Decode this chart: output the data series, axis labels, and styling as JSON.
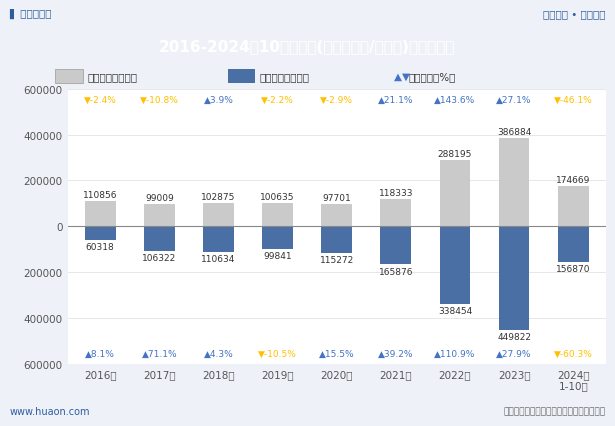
{
  "title": "2016-2024年10月新余市(境内目的地/货源地)进、出口额",
  "years": [
    "2016年",
    "2017年",
    "2018年",
    "2019年",
    "2020年",
    "2021年",
    "2022年",
    "2023年",
    "2024年\n1-10月"
  ],
  "export_values": [
    110856,
    99009,
    102875,
    100635,
    97701,
    118333,
    288195,
    386884,
    174669
  ],
  "import_values": [
    60318,
    106322,
    110634,
    99841,
    115272,
    165876,
    338454,
    449822,
    156870
  ],
  "export_growth_strs": [
    "-2.4%",
    "-10.8%",
    "3.9%",
    "-2.2%",
    "-2.9%",
    "21.1%",
    "143.6%",
    "27.1%",
    "-46.1%"
  ],
  "import_growth_strs": [
    "8.1%",
    "71.1%",
    "4.3%",
    "-10.5%",
    "15.5%",
    "39.2%",
    "110.9%",
    "27.9%",
    "-60.3%"
  ],
  "export_growth_vals": [
    -2.4,
    -10.8,
    3.9,
    -2.2,
    -2.9,
    21.1,
    143.6,
    27.1,
    -46.1
  ],
  "import_growth_vals": [
    8.1,
    71.1,
    4.3,
    -10.5,
    15.5,
    39.2,
    110.9,
    27.9,
    -60.3
  ],
  "export_color": "#CACACA",
  "import_color": "#4A6FA5",
  "pos_growth_color": "#4472C4",
  "neg_growth_color": "#FFC000",
  "ylim": [
    -600000,
    600000
  ],
  "yticks": [
    -600000,
    -400000,
    -200000,
    0,
    200000,
    400000,
    600000
  ],
  "legend_export": "出口额（万美元）",
  "legend_import": "进口额（万美元）",
  "legend_growth": "同比增长（%）",
  "header_label_left": "华经情报网",
  "header_label_right": "专业严谨 • 客观科学",
  "footer_left": "www.huaon.com",
  "footer_right": "数据来源：中国海关；华经产业研究院整理",
  "title_bg": "#2E5D9E",
  "title_color": "#FFFFFF",
  "fig_bg": "#EEF2F8",
  "chart_bg": "#FFFFFF"
}
